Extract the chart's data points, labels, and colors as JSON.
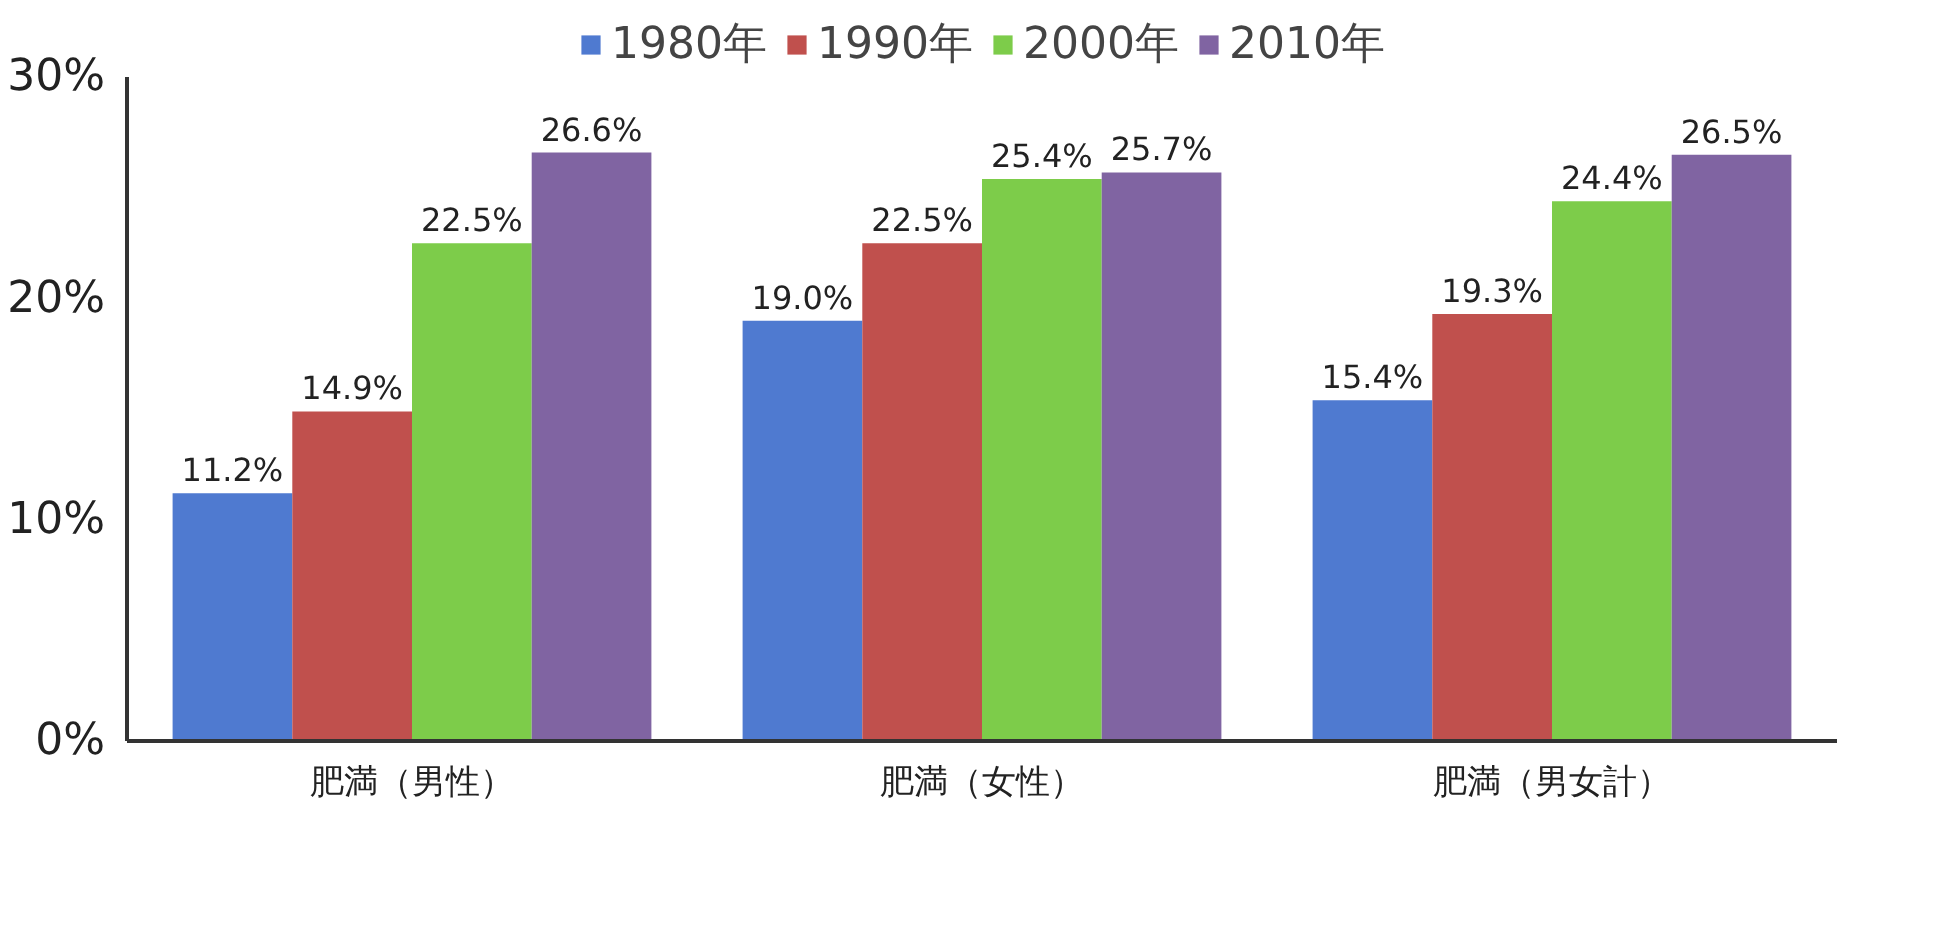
{
  "chart_data": {
    "type": "bar",
    "categories": [
      "肥満（男性）",
      "肥満（女性）",
      "肥満（男女計）"
    ],
    "series": [
      {
        "name": "1980年",
        "color": "#4f7ad0",
        "values": [
          11.2,
          19.0,
          15.4
        ],
        "value_labels": [
          "11.2%",
          "19.0%",
          "15.4%"
        ]
      },
      {
        "name": "1990年",
        "color": "#c0504d",
        "values": [
          14.9,
          22.5,
          19.3
        ],
        "value_labels": [
          "14.9%",
          "22.5%",
          "19.3%"
        ]
      },
      {
        "name": "2000年",
        "color": "#7dcc4a",
        "values": [
          22.5,
          25.4,
          24.4
        ],
        "value_labels": [
          "22.5%",
          "25.4%",
          "24.4%"
        ]
      },
      {
        "name": "2010年",
        "color": "#8064a2",
        "values": [
          26.6,
          25.7,
          26.5
        ],
        "value_labels": [
          "26.6%",
          "25.7%",
          "26.5%"
        ]
      }
    ],
    "ylim": [
      0,
      30
    ],
    "yticks": [
      {
        "value": 0,
        "label": "0%"
      },
      {
        "value": 10,
        "label": "10%"
      },
      {
        "value": 20,
        "label": "20%"
      },
      {
        "value": 30,
        "label": "30%"
      }
    ],
    "legend": "top",
    "grid": false
  }
}
